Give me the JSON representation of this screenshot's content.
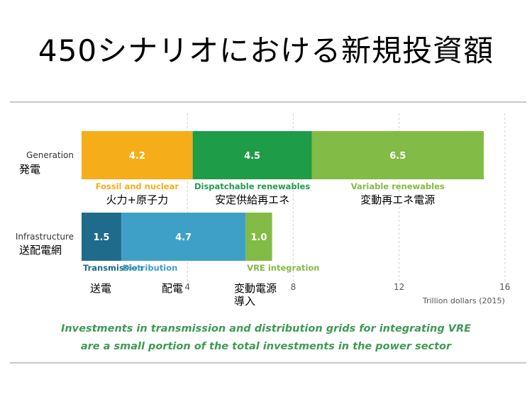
{
  "title": "450シナリオにおける新規投資額",
  "caption": {
    "line1": "Investments in transmission and distribution grids for integrating VRE",
    "line2": "are a small portion of the total investments in the power sector"
  },
  "colors": {
    "fossil": "#f5ad19",
    "dispatchable": "#1f9c48",
    "variable": "#82bb45",
    "transmission": "#1f6b8c",
    "distribution": "#3ea0c6",
    "vre_integration": "#82bb45",
    "grid": "#d0d0d0",
    "axis_text": "#555555"
  },
  "chart_data": {
    "type": "bar",
    "orientation": "horizontal",
    "stacked": true,
    "xlabel": "Trillion dollars (2015)",
    "xlim": [
      0,
      16
    ],
    "xticks": [
      4,
      8,
      12,
      16
    ],
    "grid": true,
    "categories": [
      {
        "label": "Generation",
        "label_ja": "発電",
        "segments": [
          {
            "name": "Fossil and nuclear",
            "name_ja": "火力+原子力",
            "value": 4.2,
            "value_label": "4.2",
            "color_key": "fossil"
          },
          {
            "name": "Dispatchable renewables",
            "name_ja": "安定供給再エネ",
            "value": 4.5,
            "value_label": "4.5",
            "color_key": "dispatchable"
          },
          {
            "name": "Variable renewables",
            "name_ja": "変動再エネ電源",
            "value": 6.5,
            "value_label": "6.5",
            "color_key": "variable"
          }
        ]
      },
      {
        "label": "Infrastructure",
        "label_ja": "送配電網",
        "segments": [
          {
            "name": "Transmission",
            "name_ja": "送電",
            "value": 1.5,
            "value_label": "1.5",
            "color_key": "transmission"
          },
          {
            "name": "Distribution",
            "name_ja": "配電",
            "value": 4.7,
            "value_label": "4.7",
            "color_key": "distribution"
          },
          {
            "name": "VRE integration",
            "name_ja": "変動電源\n導入",
            "value": 1.0,
            "value_label": "1.0",
            "color_key": "vre_integration"
          }
        ]
      }
    ]
  }
}
